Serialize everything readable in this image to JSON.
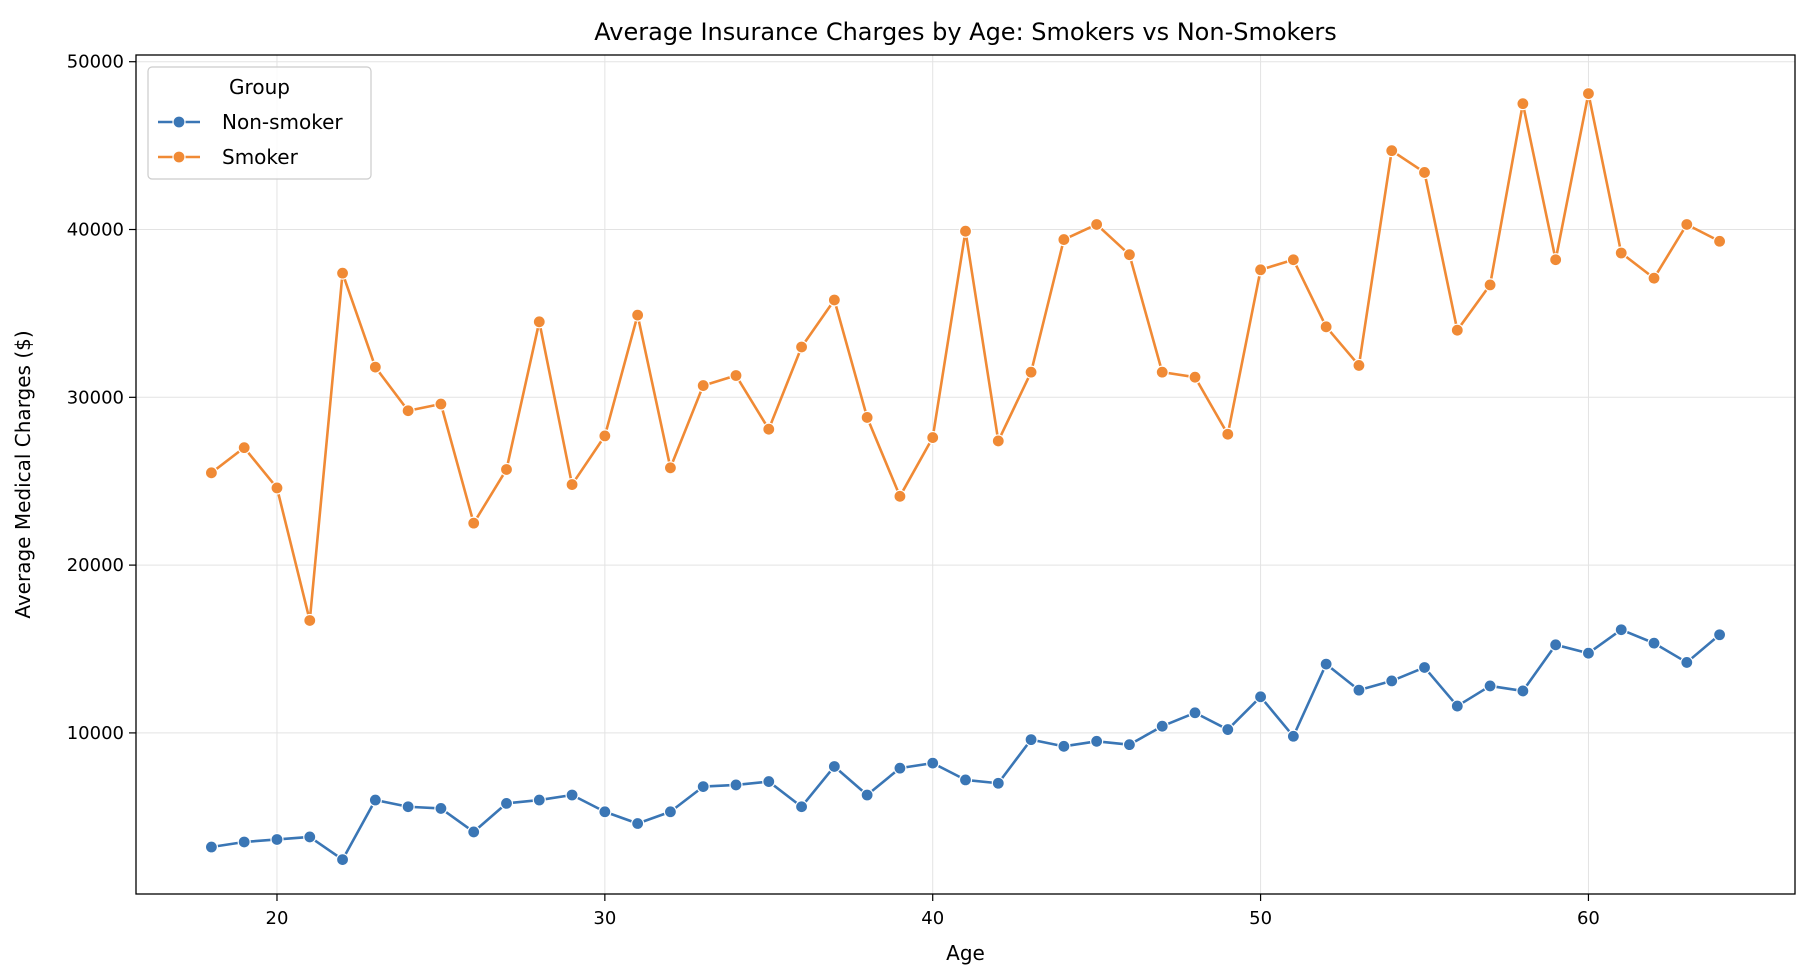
{
  "chart_data": {
    "type": "line",
    "title": "Average Insurance Charges by Age: Smokers vs Non-Smokers",
    "xlabel": "Age",
    "ylabel": "Average Medical Charges ($)",
    "xlim": [
      15.7,
      66.3
    ],
    "ylim": [
      400,
      50400
    ],
    "x_ticks": [
      20,
      30,
      40,
      50,
      60
    ],
    "x_tick_labels": [
      "20",
      "30",
      "40",
      "50",
      "60"
    ],
    "y_ticks": [
      10000,
      20000,
      30000,
      40000,
      50000
    ],
    "y_tick_labels": [
      "10000",
      "20000",
      "30000",
      "40000",
      "50000"
    ],
    "grid": true,
    "legend": {
      "title": "Group",
      "position": "top-left"
    },
    "x": [
      18,
      19,
      20,
      21,
      22,
      23,
      24,
      25,
      26,
      27,
      28,
      29,
      30,
      31,
      32,
      33,
      34,
      35,
      36,
      37,
      38,
      39,
      40,
      41,
      42,
      43,
      44,
      45,
      46,
      47,
      48,
      49,
      50,
      51,
      52,
      53,
      54,
      55,
      56,
      57,
      58,
      59,
      60,
      61,
      62,
      63,
      64
    ],
    "series": [
      {
        "name": "Non-smoker",
        "color": "#3a76b5",
        "values": [
          3200,
          3500,
          3650,
          3800,
          2450,
          6000,
          5600,
          5500,
          4100,
          5800,
          6000,
          6300,
          5300,
          4600,
          5300,
          6800,
          6900,
          7100,
          5600,
          8000,
          6300,
          7900,
          8200,
          7200,
          7000,
          9600,
          9200,
          9500,
          9300,
          10400,
          11200,
          10200,
          12150,
          9800,
          14100,
          12550,
          13100,
          13900,
          11600,
          12800,
          12500,
          15250,
          14750,
          16150,
          15350,
          14200,
          15850
        ]
      },
      {
        "name": "Smoker",
        "color": "#f08a35",
        "values": [
          25500,
          27000,
          24600,
          16700,
          37400,
          31800,
          29200,
          29600,
          22500,
          25700,
          34500,
          24800,
          27700,
          34900,
          25800,
          30700,
          31300,
          28100,
          33000,
          35800,
          28800,
          24100,
          27600,
          39900,
          27400,
          31500,
          39400,
          40300,
          38500,
          31500,
          31200,
          27800,
          37600,
          38200,
          34200,
          31900,
          44700,
          43400,
          34000,
          36700,
          47500,
          38200,
          48100,
          38600,
          37100,
          40300,
          39300
        ]
      }
    ]
  }
}
